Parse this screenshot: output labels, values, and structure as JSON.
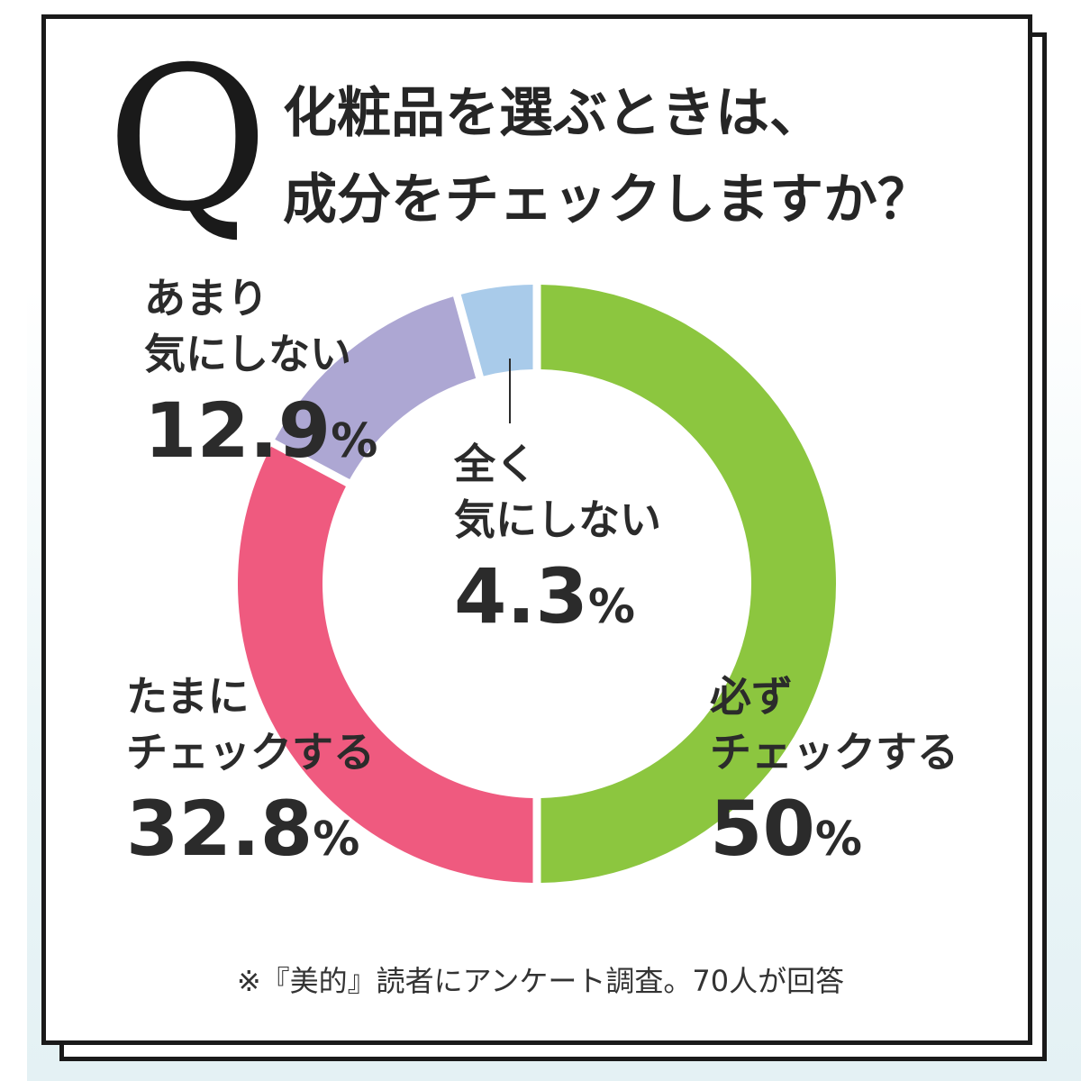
{
  "question": {
    "letter": "Q",
    "line1": "化粧品を選ぶときは、",
    "line2": "成分をチェックしますか？"
  },
  "chart_data": {
    "type": "pie",
    "title": "化粧品を選ぶときは、成分をチェックしますか？",
    "donut": true,
    "slices": [
      {
        "label": "必ずチェックする",
        "value": 50,
        "color": "#8cc63f"
      },
      {
        "label": "たまにチェックする",
        "value": 32.8,
        "color": "#ef5a7f"
      },
      {
        "label": "あまり気にしない",
        "value": 12.9,
        "color": "#ada7d3"
      },
      {
        "label": "全く気にしない",
        "value": 4.3,
        "color": "#a9cbea"
      }
    ]
  },
  "labels": {
    "always": {
      "line1": "必ず",
      "line2": "チェックする",
      "pct": "50",
      "sign": "%"
    },
    "sometimes": {
      "line1": "たまに",
      "line2": "チェックする",
      "pct": "32.8",
      "sign": "%"
    },
    "rarely": {
      "line1": "あまり",
      "line2": "気にしない",
      "pct": "12.9",
      "sign": "%"
    },
    "never": {
      "line1": "全く",
      "line2": "気にしない",
      "pct": "4.3",
      "sign": "%"
    }
  },
  "footnote": "※『美的』読者にアンケート調査。70人が回答"
}
